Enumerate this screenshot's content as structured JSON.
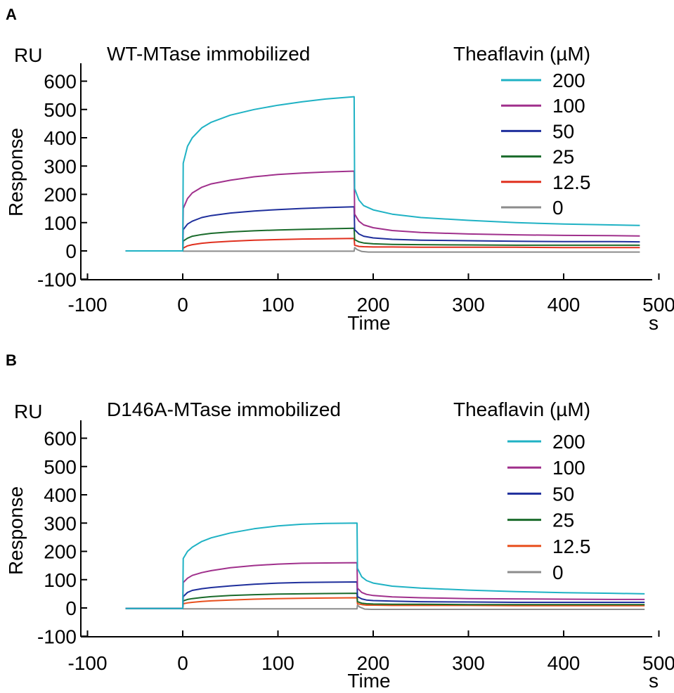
{
  "chart_data": [
    {
      "panel": "A",
      "type": "line",
      "title": "WT-MTase immobilized",
      "ylabel": "Response",
      "yunit": "RU",
      "xlabel": "Time",
      "xunit": "s",
      "xlim": [
        -120,
        505
      ],
      "ylim": [
        -100,
        650
      ],
      "xticks": [
        -100,
        0,
        100,
        200,
        300,
        400,
        500
      ],
      "yticks": [
        -100,
        0,
        100,
        200,
        300,
        400,
        500,
        600
      ],
      "legend_title": "Theaflavin (µM)",
      "legend_position": "top-right",
      "injection_start": 0,
      "injection_end": 180,
      "series": [
        {
          "name": "200",
          "color": "#1fb2c4",
          "x": [
            -60,
            0,
            0.5,
            5,
            10,
            20,
            30,
            50,
            75,
            100,
            125,
            150,
            180,
            180.5,
            185,
            190,
            200,
            220,
            250,
            300,
            350,
            400,
            450,
            480
          ],
          "y": [
            0,
            0,
            310,
            370,
            400,
            435,
            455,
            480,
            500,
            515,
            527,
            537,
            545,
            220,
            180,
            160,
            145,
            130,
            118,
            108,
            100,
            95,
            92,
            90
          ]
        },
        {
          "name": "100",
          "color": "#a0308c",
          "x": [
            -60,
            0,
            0.5,
            5,
            10,
            20,
            30,
            50,
            75,
            100,
            125,
            150,
            180,
            180.5,
            185,
            190,
            200,
            220,
            250,
            300,
            350,
            400,
            450,
            480
          ],
          "y": [
            0,
            0,
            150,
            185,
            205,
            225,
            237,
            250,
            262,
            270,
            275,
            279,
            282,
            130,
            105,
            92,
            82,
            72,
            65,
            60,
            57,
            55,
            54,
            53
          ]
        },
        {
          "name": "50",
          "color": "#1f2f9c",
          "x": [
            -60,
            0,
            0.5,
            5,
            10,
            20,
            30,
            50,
            75,
            100,
            125,
            150,
            180,
            180.5,
            185,
            190,
            200,
            220,
            250,
            300,
            350,
            400,
            450,
            480
          ],
          "y": [
            0,
            0,
            75,
            95,
            105,
            118,
            125,
            134,
            141,
            146,
            150,
            153,
            156,
            75,
            60,
            52,
            46,
            41,
            38,
            36,
            34,
            33,
            33,
            32
          ]
        },
        {
          "name": "25",
          "color": "#1a6b2b",
          "x": [
            -60,
            0,
            0.5,
            5,
            10,
            20,
            30,
            50,
            75,
            100,
            125,
            150,
            180,
            180.5,
            185,
            190,
            200,
            220,
            250,
            300,
            350,
            400,
            450,
            480
          ],
          "y": [
            0,
            0,
            35,
            45,
            52,
            58,
            62,
            67,
            71,
            74,
            76,
            78,
            80,
            40,
            32,
            28,
            25,
            23,
            22,
            21,
            20,
            20,
            20,
            20
          ]
        },
        {
          "name": "12.5",
          "color": "#e0301e",
          "x": [
            -60,
            0,
            0.5,
            5,
            10,
            20,
            30,
            50,
            75,
            100,
            125,
            150,
            180,
            180.5,
            185,
            190,
            200,
            220,
            250,
            300,
            350,
            400,
            450,
            480
          ],
          "y": [
            0,
            0,
            10,
            18,
            22,
            27,
            30,
            34,
            38,
            40,
            42,
            43,
            44,
            20,
            16,
            15,
            14,
            14,
            13,
            13,
            13,
            12,
            12,
            12
          ]
        },
        {
          "name": "0",
          "color": "#8c8c8c",
          "x": [
            -60,
            0,
            0.5,
            20,
            60,
            120,
            180,
            180.5,
            183,
            188,
            195,
            250,
            300,
            400,
            480
          ],
          "y": [
            0,
            0,
            -1,
            -1,
            -1,
            -1,
            -1,
            12,
            5,
            -2,
            -4,
            -4,
            -4,
            -4,
            -4
          ]
        }
      ]
    },
    {
      "panel": "B",
      "type": "line",
      "title": "D146A-MTase immobilized",
      "ylabel": "Response",
      "yunit": "RU",
      "xlabel": "Time",
      "xunit": "s",
      "xlim": [
        -120,
        505
      ],
      "ylim": [
        -100,
        650
      ],
      "xticks": [
        -100,
        0,
        100,
        200,
        300,
        400,
        500
      ],
      "yticks": [
        -100,
        0,
        100,
        200,
        300,
        400,
        500,
        600
      ],
      "legend_title": "Theaflavin (µM)",
      "legend_position": "top-right",
      "injection_start": 0,
      "injection_end": 183,
      "series": [
        {
          "name": "200",
          "color": "#1fb2c4",
          "x": [
            -60,
            0,
            0.5,
            5,
            10,
            20,
            30,
            50,
            75,
            100,
            125,
            150,
            183,
            183.5,
            188,
            193,
            200,
            220,
            250,
            300,
            350,
            400,
            450,
            485
          ],
          "y": [
            -2,
            -2,
            175,
            200,
            215,
            235,
            248,
            265,
            280,
            290,
            296,
            299,
            300,
            140,
            110,
            97,
            88,
            77,
            70,
            63,
            58,
            54,
            52,
            50
          ]
        },
        {
          "name": "100",
          "color": "#a0308c",
          "x": [
            -60,
            0,
            0.5,
            5,
            10,
            20,
            30,
            50,
            75,
            100,
            125,
            150,
            183,
            183.5,
            188,
            193,
            200,
            220,
            250,
            300,
            350,
            400,
            450,
            485
          ],
          "y": [
            -2,
            -2,
            90,
            105,
            115,
            125,
            132,
            142,
            150,
            155,
            158,
            159,
            160,
            70,
            55,
            48,
            44,
            39,
            36,
            33,
            32,
            31,
            30,
            30
          ]
        },
        {
          "name": "50",
          "color": "#1f2f9c",
          "x": [
            -60,
            0,
            0.5,
            5,
            10,
            20,
            30,
            50,
            75,
            100,
            125,
            150,
            183,
            183.5,
            188,
            193,
            200,
            220,
            250,
            300,
            350,
            400,
            450,
            485
          ],
          "y": [
            -2,
            -2,
            40,
            55,
            62,
            68,
            72,
            78,
            84,
            88,
            90,
            91,
            92,
            40,
            32,
            28,
            26,
            24,
            22,
            21,
            20,
            20,
            20,
            20
          ]
        },
        {
          "name": "25",
          "color": "#1a6b2b",
          "x": [
            -60,
            0,
            0.5,
            5,
            10,
            20,
            30,
            50,
            75,
            100,
            125,
            150,
            183,
            183.5,
            188,
            193,
            200,
            220,
            250,
            300,
            350,
            400,
            450,
            485
          ],
          "y": [
            -2,
            -2,
            25,
            30,
            33,
            37,
            40,
            44,
            47,
            49,
            50,
            51,
            52,
            22,
            17,
            15,
            14,
            13,
            13,
            12,
            12,
            12,
            12,
            12
          ]
        },
        {
          "name": "12.5",
          "color": "#e8501e",
          "x": [
            -60,
            0,
            0.5,
            5,
            10,
            20,
            30,
            50,
            75,
            100,
            125,
            150,
            183,
            183.5,
            188,
            193,
            200,
            220,
            250,
            300,
            350,
            400,
            450,
            485
          ],
          "y": [
            -2,
            -2,
            15,
            18,
            20,
            23,
            25,
            28,
            31,
            33,
            34,
            35,
            36,
            15,
            12,
            10,
            10,
            9,
            9,
            9,
            8,
            8,
            8,
            8
          ]
        },
        {
          "name": "0",
          "color": "#8c8c8c",
          "x": [
            -60,
            0,
            0.5,
            20,
            60,
            120,
            183,
            183.5,
            186,
            191,
            198,
            250,
            300,
            400,
            485
          ],
          "y": [
            -2,
            -2,
            -3,
            -3,
            -3,
            -3,
            -3,
            10,
            3,
            -4,
            -5,
            -5,
            -5,
            -5,
            -5
          ]
        }
      ]
    }
  ]
}
